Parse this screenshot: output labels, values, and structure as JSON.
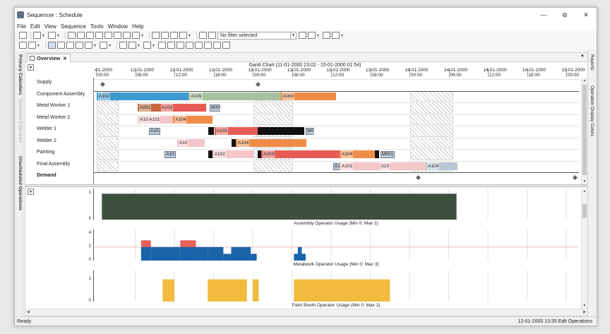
{
  "window": {
    "title": "Sequencer : Schedule",
    "minimize": "—",
    "restore": "⧉",
    "close": "✕"
  },
  "menu": [
    "File",
    "Edit",
    "View",
    "Sequence",
    "Tools",
    "Window",
    "Help"
  ],
  "toolbar": {
    "filter_value": "No filter selected"
  },
  "left_tabs": [
    "Primary Calendars",
    "Secondary Calendars",
    "Unscheduled Operations"
  ],
  "right_tabs": [
    "Reports",
    "Operation Display Colors"
  ],
  "doc_tab": {
    "label": "Overview",
    "close": "✕"
  },
  "gantt": {
    "title": "Gantt Chart   (11-01-2000 23:02 - 15-01-2000 01:54)",
    "ticks": [
      {
        "date": "-01-2000",
        "time": "00:00"
      },
      {
        "date": "12-01-2000",
        "time": "06:00"
      },
      {
        "date": "12-01-2000",
        "time": "12:00"
      },
      {
        "date": "12-01-2000",
        "time": "18:00"
      },
      {
        "date": "13-01-2000",
        "time": "00:00"
      },
      {
        "date": "13-01-2000",
        "time": "06:00"
      },
      {
        "date": "13-01-2000",
        "time": "12:00"
      },
      {
        "date": "13-01-2000",
        "time": "18:00"
      },
      {
        "date": "14-01-2000",
        "time": "00:00"
      },
      {
        "date": "14-01-2000",
        "time": "06:00"
      },
      {
        "date": "14-01-2000",
        "time": "12:00"
      },
      {
        "date": "14-01-2000",
        "time": "18:00"
      },
      {
        "date": "15-01-2000",
        "time": "00:00"
      }
    ],
    "rows": [
      "Supply",
      "Component Assembly",
      "Metal Worker 1",
      "Metal Worker 2",
      "Welder 1",
      "Welder 2",
      "Painting",
      "Final Assembly",
      "Demand"
    ],
    "colors": {
      "blue": "#3c9ad1",
      "green": "#a7c39e",
      "orange": "#ef8c47",
      "red": "#e65c54",
      "pink": "#f4c6ca",
      "brown": "#c4683f",
      "grey": "#b9c7d3"
    },
    "bars": [
      {
        "row": 1,
        "start": 0,
        "end": 2.35,
        "color": "blue",
        "label": "A102"
      },
      {
        "row": 1,
        "start": 2.35,
        "end": 4.7,
        "color": "green",
        "label": "A105"
      },
      {
        "row": 1,
        "start": 4.7,
        "end": 6.1,
        "color": "orange",
        "label": "A003"
      },
      {
        "row": 2,
        "start": 1.05,
        "end": 1.6,
        "color": "brown",
        "label": "A001"
      },
      {
        "row": 2,
        "start": 1.6,
        "end": 2.8,
        "color": "red",
        "label": "A103"
      },
      {
        "row": 2,
        "start": 2.85,
        "end": 3.15,
        "color": "grey",
        "label": "MXX",
        "boxed": true
      },
      {
        "row": 3,
        "start": 1.05,
        "end": 1.95,
        "color": "pink",
        "label": "A10 A102"
      },
      {
        "row": 3,
        "start": 1.95,
        "end": 2.95,
        "color": "orange",
        "label": "A104"
      },
      {
        "row": 4,
        "start": 1.3,
        "end": 1.65,
        "color": "grey",
        "label": "A10",
        "boxed": true
      },
      {
        "row": 4,
        "start": 2.85,
        "end": 3.0,
        "color": "black",
        "label": ""
      },
      {
        "row": 4,
        "start": 3.0,
        "end": 4.1,
        "color": "red",
        "label": "A103"
      },
      {
        "row": 4,
        "start": 4.1,
        "end": 5.3,
        "color": "black",
        "label": ""
      },
      {
        "row": 4,
        "start": 5.3,
        "end": 5.55,
        "color": "grey",
        "label": "M0",
        "boxed": true
      },
      {
        "row": 5,
        "start": 2.05,
        "end": 2.75,
        "color": "pink",
        "label": "A10"
      },
      {
        "row": 5,
        "start": 3.45,
        "end": 3.55,
        "color": "black",
        "label": ""
      },
      {
        "row": 5,
        "start": 3.55,
        "end": 5.35,
        "color": "orange",
        "label": "A104"
      },
      {
        "row": 6,
        "start": 1.7,
        "end": 2.05,
        "color": "grey",
        "label": "A10",
        "boxed": true
      },
      {
        "row": 6,
        "start": 2.85,
        "end": 2.95,
        "color": "black",
        "label": ""
      },
      {
        "row": 6,
        "start": 2.95,
        "end": 4.0,
        "color": "pink",
        "label": "A102"
      },
      {
        "row": 6,
        "start": 4.1,
        "end": 4.2,
        "color": "black",
        "label": ""
      },
      {
        "row": 6,
        "start": 4.2,
        "end": 6.2,
        "color": "red",
        "label": "A103"
      },
      {
        "row": 6,
        "start": 6.2,
        "end": 7.1,
        "color": "orange",
        "label": "A104"
      },
      {
        "row": 6,
        "start": 7.1,
        "end": 7.2,
        "color": "black",
        "label": ""
      },
      {
        "row": 6,
        "start": 7.2,
        "end": 7.6,
        "color": "grey",
        "label": "M001",
        "boxed": true
      },
      {
        "row": 7,
        "start": 6.0,
        "end": 6.2,
        "color": "grey",
        "label": "A1",
        "boxed": true
      },
      {
        "row": 7,
        "start": 6.2,
        "end": 7.2,
        "color": "pink",
        "label": "A102"
      },
      {
        "row": 7,
        "start": 7.2,
        "end": 8.4,
        "color": "pink",
        "label": "A10"
      },
      {
        "row": 7,
        "start": 8.4,
        "end": 9.2,
        "color": "grey",
        "label": "A104"
      }
    ],
    "supply_markers": [
      0.15,
      4.1
    ],
    "demand_markers": [
      8.2,
      12.2
    ]
  },
  "usage_charts": [
    {
      "caption": "Assembly Operator Usage (Min 0: Max 2)",
      "y_ticks": [
        "1",
        "0"
      ],
      "y_max": 1.2,
      "color": "#3d4f3f",
      "segments": [
        {
          "x0": 0.15,
          "x1": 9.2,
          "y": 1
        }
      ]
    },
    {
      "caption": "Metalwork Operator Usage (Min 0: Max 3)",
      "y_ticks": [
        "4",
        "2",
        "0"
      ],
      "y_max": 4.6,
      "color": "#1a64a8",
      "cap_color": "#e6605a",
      "limit": 2,
      "segments": [
        {
          "x0": 1.15,
          "x1": 1.4,
          "y": 2,
          "cap": 3
        },
        {
          "x0": 1.4,
          "x1": 2.15,
          "y": 2
        },
        {
          "x0": 2.15,
          "x1": 2.55,
          "y": 2,
          "cap": 3
        },
        {
          "x0": 2.55,
          "x1": 2.85,
          "y": 2
        },
        {
          "x0": 2.85,
          "x1": 3.25,
          "y": 2
        },
        {
          "x0": 3.25,
          "x1": 3.45,
          "y": 1
        },
        {
          "x0": 3.45,
          "x1": 3.95,
          "y": 2
        },
        {
          "x0": 3.95,
          "x1": 4.1,
          "y": 1
        },
        {
          "x0": 5.05,
          "x1": 5.35,
          "y": 1
        },
        {
          "x0": 5.15,
          "x1": 5.25,
          "y": 2
        }
      ]
    },
    {
      "caption": "Paint Booth Operator Usage (Min 0: Max 2)",
      "y_ticks": [
        "1",
        "0"
      ],
      "y_max": 1.4,
      "color": "#f0bb3e",
      "segments": [
        {
          "x0": 1.7,
          "x1": 2.0,
          "y": 1
        },
        {
          "x0": 2.85,
          "x1": 3.85,
          "y": 1
        },
        {
          "x0": 4.0,
          "x1": 4.15,
          "y": 1
        },
        {
          "x0": 5.05,
          "x1": 7.5,
          "y": 1
        }
      ]
    }
  ],
  "status": {
    "left": "Ready",
    "right": "12-01-2000 13:35   Edit Operations"
  }
}
